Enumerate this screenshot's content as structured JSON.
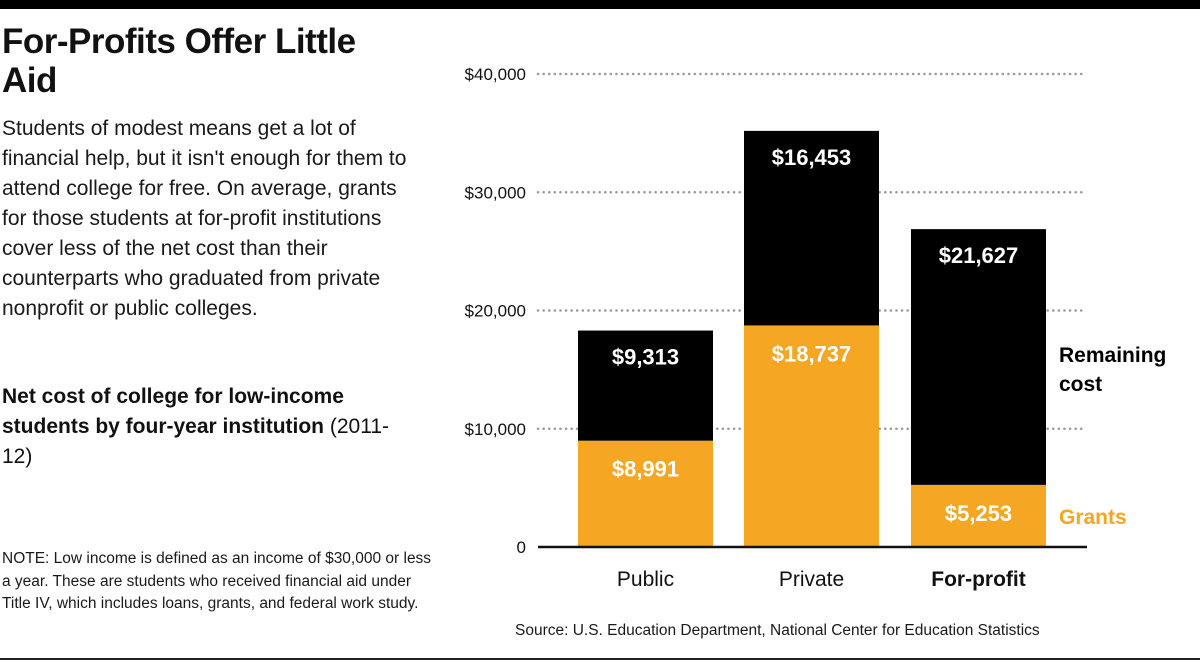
{
  "title": "For-Profits Offer Little Aid",
  "description": "Students of modest means get a lot of financial help, but it isn't enough for them to attend college for free. On average, grants for those students at for-profit institutions cover less of the net cost than their counterparts who graduated from private nonprofit or public colleges.",
  "subtitle": {
    "strong": "Net cost of college for low-income students by four-year institution",
    "year": "(2011-12)"
  },
  "note": "NOTE: Low income is defined as an income of $30,000 or less a year. These are students who received financial aid under Title IV, which includes loans, grants, and federal work study.",
  "source": "Source: U.S. Education Department, National Center for Education Statistics",
  "colors": {
    "grants": "#F5A623",
    "remaining": "#000000",
    "grid": "#999999",
    "grants_label": "#F5A623"
  },
  "chart_data": {
    "type": "bar",
    "stacked": true,
    "categories": [
      "Public",
      "Private",
      "For-profit"
    ],
    "emphasized_category": "For-profit",
    "series": [
      {
        "name": "Grants",
        "values": [
          8991,
          18737,
          5253
        ],
        "labels": [
          "$8,991",
          "$18,737",
          "$5,253"
        ]
      },
      {
        "name": "Remaining cost",
        "values": [
          9313,
          16453,
          21627
        ],
        "labels": [
          "$9,313",
          "$16,453",
          "$21,627"
        ]
      }
    ],
    "ylim": [
      0,
      40000
    ],
    "yticks": [
      0,
      10000,
      20000,
      30000,
      40000
    ],
    "ytick_labels": [
      "0",
      "$10,000",
      "$20,000",
      "$30,000",
      "$40,000"
    ],
    "grid": true,
    "grid_style": "dotted",
    "legend": "inline-right",
    "xlabel": "",
    "ylabel": ""
  }
}
